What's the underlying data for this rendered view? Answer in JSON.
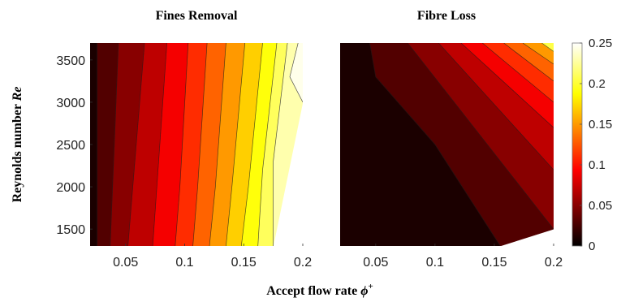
{
  "chart_data": [
    {
      "type": "heatmap",
      "title": "Fines Removal",
      "xlabel": "",
      "ylabel": "Reynolds number Re",
      "xlim": [
        0.02,
        0.2
      ],
      "ylim": [
        1300,
        3700
      ],
      "x_ticks": [
        0.05,
        0.1,
        0.15,
        0.2
      ],
      "y_ticks": [
        1500,
        2000,
        2500,
        3000,
        3500
      ],
      "contour_levels": [
        0.02,
        0.04,
        0.06,
        0.08,
        0.1,
        0.12,
        0.14,
        0.16,
        0.18,
        0.2,
        0.22,
        0.24
      ],
      "contours": [
        {
          "level": 0.02,
          "points": [
            [
              0.026,
              3700
            ],
            [
              0.026,
              1300
            ]
          ]
        },
        {
          "level": 0.04,
          "points": [
            [
              0.044,
              3700
            ],
            [
              0.037,
              1300
            ]
          ]
        },
        {
          "level": 0.06,
          "points": [
            [
              0.066,
              3700
            ],
            [
              0.052,
              1300
            ]
          ]
        },
        {
          "level": 0.08,
          "points": [
            [
              0.085,
              3700
            ],
            [
              0.073,
              1300
            ]
          ]
        },
        {
          "level": 0.1,
          "points": [
            [
              0.103,
              3700
            ],
            [
              0.096,
              2000
            ],
            [
              0.092,
              1300
            ]
          ]
        },
        {
          "level": 0.12,
          "points": [
            [
              0.119,
              3700
            ],
            [
              0.111,
              2000
            ],
            [
              0.107,
              1300
            ]
          ]
        },
        {
          "level": 0.14,
          "points": [
            [
              0.135,
              3700
            ],
            [
              0.126,
              2000
            ],
            [
              0.121,
              1300
            ]
          ]
        },
        {
          "level": 0.16,
          "points": [
            [
              0.151,
              3700
            ],
            [
              0.14,
              2000
            ],
            [
              0.135,
              1300
            ]
          ]
        },
        {
          "level": 0.18,
          "points": [
            [
              0.166,
              3700
            ],
            [
              0.154,
              2000
            ],
            [
              0.148,
              1300
            ]
          ]
        },
        {
          "level": 0.2,
          "points": [
            [
              0.178,
              3700
            ],
            [
              0.166,
              2200
            ],
            [
              0.162,
              1300
            ]
          ]
        },
        {
          "level": 0.22,
          "points": [
            [
              0.187,
              3700
            ],
            [
              0.175,
              2300
            ],
            [
              0.175,
              1300
            ]
          ]
        },
        {
          "level": 0.24,
          "points": [
            [
              0.196,
              3700
            ],
            [
              0.189,
              3300
            ],
            [
              0.2,
              3000
            ]
          ]
        }
      ]
    },
    {
      "type": "heatmap",
      "title": "Fibre Loss",
      "xlabel": "",
      "ylabel": "",
      "xlim": [
        0.02,
        0.2
      ],
      "ylim": [
        1300,
        3700
      ],
      "x_ticks": [
        0.05,
        0.1,
        0.15,
        0.2
      ],
      "y_ticks": [],
      "contour_levels": [
        0.02,
        0.04,
        0.06,
        0.08,
        0.1,
        0.12,
        0.14,
        0.16
      ],
      "contours": [
        {
          "level": 0.02,
          "points": [
            [
              0.045,
              3700
            ],
            [
              0.05,
              3300
            ],
            [
              0.1,
              2500
            ],
            [
              0.155,
              1300
            ]
          ]
        },
        {
          "level": 0.04,
          "points": [
            [
              0.077,
              3700
            ],
            [
              0.2,
              1500
            ]
          ]
        },
        {
          "level": 0.06,
          "points": [
            [
              0.103,
              3700
            ],
            [
              0.2,
              2200
            ]
          ]
        },
        {
          "level": 0.08,
          "points": [
            [
              0.122,
              3700
            ],
            [
              0.2,
              2700
            ]
          ]
        },
        {
          "level": 0.1,
          "points": [
            [
              0.14,
              3700
            ],
            [
              0.2,
              3000
            ]
          ]
        },
        {
          "level": 0.12,
          "points": [
            [
              0.158,
              3700
            ],
            [
              0.2,
              3250
            ]
          ]
        },
        {
          "level": 0.14,
          "points": [
            [
              0.174,
              3700
            ],
            [
              0.2,
              3450
            ]
          ]
        },
        {
          "level": 0.16,
          "points": [
            [
              0.19,
              3700
            ],
            [
              0.2,
              3600
            ]
          ]
        }
      ]
    }
  ],
  "shared": {
    "xlabel_main": "Accept flow rate",
    "xlabel_symbol": "ϕ",
    "xlabel_sup": "+",
    "ylabel_main": "Reynolds number",
    "ylabel_italic": "Re"
  },
  "colorbar": {
    "min": 0,
    "max": 0.25,
    "ticks": [
      0,
      0.05,
      0.1,
      0.15,
      0.2,
      0.25
    ],
    "colormap": "hot"
  }
}
